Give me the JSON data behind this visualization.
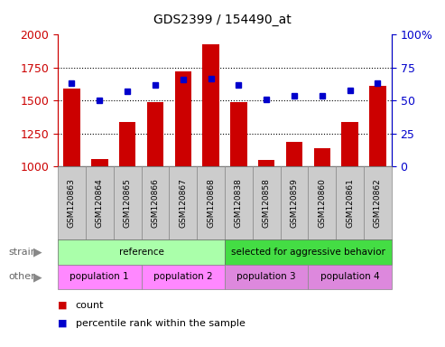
{
  "title": "GDS2399 / 154490_at",
  "samples": [
    "GSM120863",
    "GSM120864",
    "GSM120865",
    "GSM120866",
    "GSM120867",
    "GSM120868",
    "GSM120838",
    "GSM120858",
    "GSM120859",
    "GSM120860",
    "GSM120861",
    "GSM120862"
  ],
  "counts": [
    1590,
    1060,
    1340,
    1490,
    1720,
    1930,
    1490,
    1050,
    1185,
    1140,
    1340,
    1610
  ],
  "percentiles": [
    63,
    50,
    57,
    62,
    66,
    67,
    62,
    51,
    54,
    54,
    58,
    63
  ],
  "ymin": 1000,
  "ymax": 2000,
  "yticks": [
    1000,
    1250,
    1500,
    1750,
    2000
  ],
  "right_yticks": [
    0,
    25,
    50,
    75,
    100
  ],
  "count_color": "#cc0000",
  "percentile_color": "#0000cc",
  "strain_labels": [
    {
      "text": "reference",
      "start": 0,
      "end": 6,
      "color": "#aaffaa"
    },
    {
      "text": "selected for aggressive behavior",
      "start": 6,
      "end": 12,
      "color": "#44dd44"
    }
  ],
  "other_labels": [
    {
      "text": "population 1",
      "start": 0,
      "end": 3,
      "color": "#ff88ff"
    },
    {
      "text": "population 2",
      "start": 3,
      "end": 6,
      "color": "#ff88ff"
    },
    {
      "text": "population 3",
      "start": 6,
      "end": 9,
      "color": "#dd88dd"
    },
    {
      "text": "population 4",
      "start": 9,
      "end": 12,
      "color": "#dd88dd"
    }
  ],
  "strain_row_label": "strain",
  "other_row_label": "other",
  "legend_count": "count",
  "legend_percentile": "percentile rank within the sample",
  "bar_width": 0.6,
  "xtick_bg": "#cccccc",
  "box_edgecolor": "#888888"
}
